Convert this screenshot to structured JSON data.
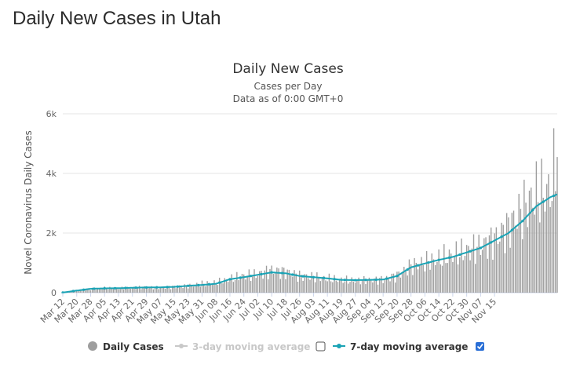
{
  "page": {
    "title": "Daily New Cases in Utah"
  },
  "colors": {
    "bars": "#9e9e9e",
    "ma7": "#1aa3b5",
    "ma3": "#c8c8c8",
    "checkbox_checked": "#2a6fd6"
  },
  "legend": {
    "daily": "Daily Cases",
    "ma3": "3-day moving average",
    "ma7": "7-day moving average",
    "ma3_checked": false,
    "ma7_checked": true
  },
  "chart_data": {
    "type": "bar",
    "title": "Daily New Cases",
    "subtitle": "Cases per Day",
    "subtitle2": "Data as of 0:00 GMT+0",
    "ylabel": "Novel Coronavirus Daily Cases",
    "xlabel": "",
    "ylim": [
      0,
      6000
    ],
    "yticks": [
      0,
      2000,
      4000,
      6000
    ],
    "ytick_labels": [
      "0",
      "2k",
      "4k",
      "6k"
    ],
    "start_date": "Mar 12",
    "xtick_labels": [
      "Mar 12",
      "Mar 20",
      "Mar 28",
      "Apr 05",
      "Apr 13",
      "Apr 21",
      "Apr 29",
      "May 07",
      "May 15",
      "May 23",
      "May 31",
      "Jun 08",
      "Jun 16",
      "Jun 24",
      "Jul 02",
      "Jul 10",
      "Jul 18",
      "Jul 26",
      "Aug 03",
      "Aug 11",
      "Aug 19",
      "Aug 27",
      "Sep 04",
      "Sep 12",
      "Sep 20",
      "Sep 28",
      "Oct 06",
      "Oct 14",
      "Oct 22",
      "Oct 30",
      "Nov 07",
      "Nov 15"
    ],
    "grid": true,
    "legend_position": "bottom",
    "ma7_anchors": [
      [
        0,
        5
      ],
      [
        8,
        70
      ],
      [
        16,
        130
      ],
      [
        24,
        145
      ],
      [
        32,
        150
      ],
      [
        40,
        165
      ],
      [
        48,
        175
      ],
      [
        56,
        180
      ],
      [
        64,
        195
      ],
      [
        72,
        230
      ],
      [
        80,
        260
      ],
      [
        88,
        300
      ],
      [
        96,
        450
      ],
      [
        104,
        520
      ],
      [
        112,
        600
      ],
      [
        120,
        680
      ],
      [
        128,
        650
      ],
      [
        136,
        560
      ],
      [
        144,
        520
      ],
      [
        152,
        480
      ],
      [
        160,
        430
      ],
      [
        168,
        420
      ],
      [
        176,
        430
      ],
      [
        184,
        440
      ],
      [
        192,
        560
      ],
      [
        200,
        850
      ],
      [
        208,
        980
      ],
      [
        216,
        1100
      ],
      [
        224,
        1200
      ],
      [
        232,
        1350
      ],
      [
        240,
        1500
      ],
      [
        248,
        1750
      ],
      [
        256,
        2000
      ],
      [
        264,
        2400
      ],
      [
        272,
        2900
      ],
      [
        280,
        3200
      ],
      [
        284,
        3300
      ]
    ],
    "daily_anchors": [
      [
        0,
        2
      ],
      [
        8,
        80
      ],
      [
        16,
        120
      ],
      [
        24,
        150
      ],
      [
        32,
        140
      ],
      [
        40,
        160
      ],
      [
        48,
        180
      ],
      [
        56,
        170
      ],
      [
        64,
        200
      ],
      [
        72,
        230
      ],
      [
        80,
        300
      ],
      [
        88,
        330
      ],
      [
        96,
        450
      ],
      [
        104,
        560
      ],
      [
        112,
        620
      ],
      [
        120,
        750
      ],
      [
        128,
        700
      ],
      [
        136,
        570
      ],
      [
        144,
        520
      ],
      [
        152,
        470
      ],
      [
        160,
        420
      ],
      [
        168,
        400
      ],
      [
        176,
        420
      ],
      [
        184,
        450
      ],
      [
        192,
        580
      ],
      [
        200,
        900
      ],
      [
        208,
        1000
      ],
      [
        216,
        1120
      ],
      [
        224,
        1250
      ],
      [
        232,
        1400
      ],
      [
        240,
        1550
      ],
      [
        248,
        1800
      ],
      [
        256,
        2200
      ],
      [
        264,
        2800
      ],
      [
        272,
        3300
      ],
      [
        280,
        3400
      ],
      [
        284,
        4550
      ]
    ]
  }
}
